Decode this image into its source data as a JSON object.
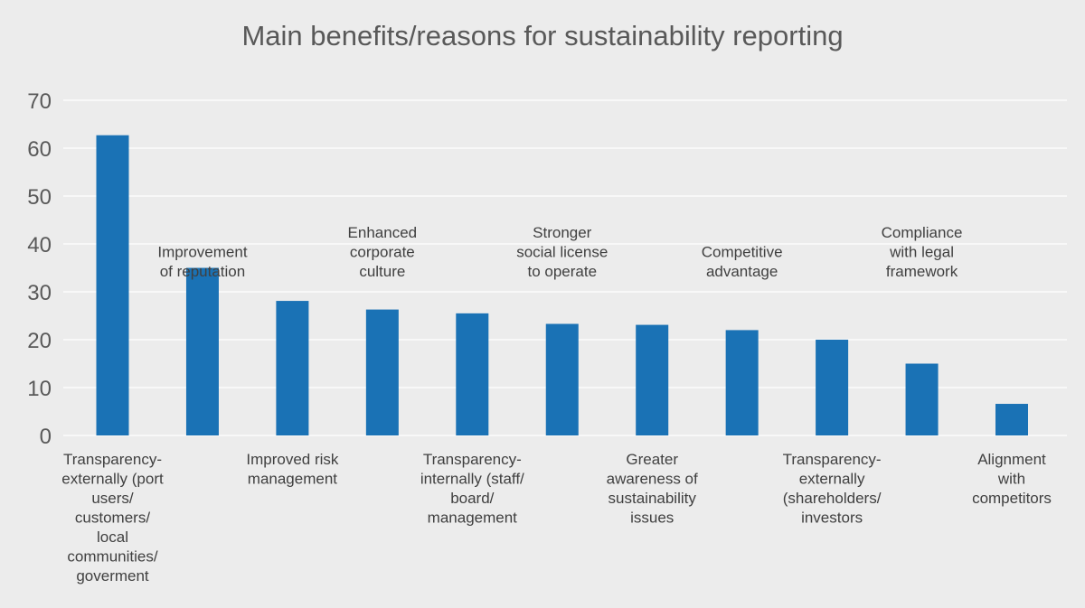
{
  "chart_data": {
    "type": "bar",
    "title": "Main benefits/reasons for sustainability reporting",
    "xlabel": "",
    "ylabel": "",
    "ylim": [
      0,
      70
    ],
    "yticks": [
      0,
      10,
      20,
      30,
      40,
      50,
      60,
      70
    ],
    "grid": true,
    "bar_color": "#1a72b5",
    "background": "#ececec",
    "categories": [
      [
        "Transparency-",
        "externally (port",
        "users/",
        "customers/",
        "local",
        "communities/",
        "goverment"
      ],
      [
        "Improvement",
        "of reputation"
      ],
      [
        "Improved risk",
        "management"
      ],
      [
        "Enhanced",
        "corporate",
        "culture"
      ],
      [
        "Transparency-",
        "internally (staff/",
        "board/",
        "management"
      ],
      [
        "Stronger",
        "social license",
        "to operate"
      ],
      [
        "Greater",
        "awareness of",
        "sustainability",
        "issues"
      ],
      [
        "Competitive",
        "advantage"
      ],
      [
        "Transparency-",
        "externally",
        "(shareholders/",
        "investors"
      ],
      [
        "Compliance",
        "with legal",
        "framework"
      ],
      [
        "Alignment",
        "with",
        "competitors"
      ]
    ],
    "values": [
      62.7,
      35,
      28.1,
      26.3,
      25.5,
      23.3,
      23.1,
      22,
      20,
      15,
      6.6
    ]
  }
}
